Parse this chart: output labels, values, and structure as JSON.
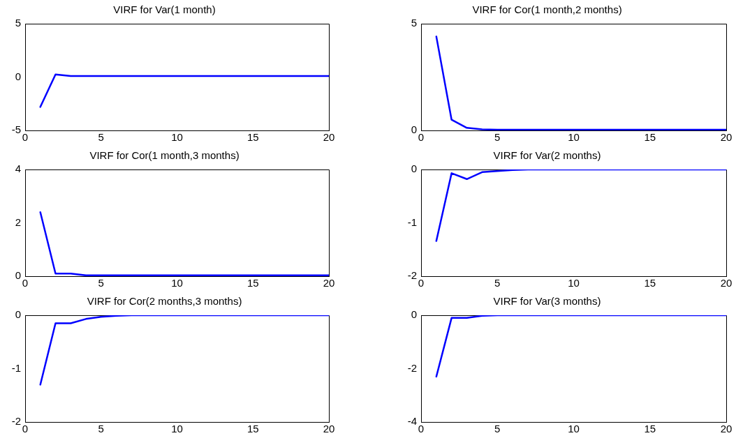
{
  "chart_data": [
    {
      "type": "line",
      "title": "VIRF for Var(1 month)",
      "x": [
        1,
        2,
        3,
        4,
        5,
        6,
        7,
        8,
        9,
        10,
        11,
        12,
        13,
        14,
        15,
        16,
        17,
        18,
        19,
        20
      ],
      "series": [
        {
          "color": "#0000ff",
          "values": [
            -2.8,
            0.25,
            0.1,
            0.1,
            0.1,
            0.1,
            0.1,
            0.1,
            0.1,
            0.1,
            0.1,
            0.1,
            0.1,
            0.1,
            0.1,
            0.1,
            0.1,
            0.1,
            0.1,
            0.1
          ]
        }
      ],
      "xlim": [
        0,
        20
      ],
      "xticks": [
        0,
        5,
        10,
        15,
        20
      ],
      "ylim": [
        -5,
        5
      ],
      "yticks": [
        -5,
        0,
        5
      ],
      "grid": false,
      "legend": false,
      "marker": "none",
      "line_style": "solid"
    },
    {
      "type": "line",
      "title": "VIRF for Cor(1 month,2 months)",
      "x": [
        1,
        2,
        3,
        4,
        5,
        6,
        7,
        8,
        9,
        10,
        11,
        12,
        13,
        14,
        15,
        16,
        17,
        18,
        19,
        20
      ],
      "series": [
        {
          "color": "#0000ff",
          "values": [
            4.4,
            0.5,
            0.12,
            0.05,
            0.03,
            0.03,
            0.03,
            0.03,
            0.03,
            0.03,
            0.03,
            0.03,
            0.03,
            0.03,
            0.03,
            0.03,
            0.03,
            0.03,
            0.03,
            0.03
          ]
        }
      ],
      "xlim": [
        0,
        20
      ],
      "xticks": [
        0,
        5,
        10,
        15,
        20
      ],
      "ylim": [
        0,
        5
      ],
      "yticks": [
        0,
        5
      ],
      "grid": false,
      "legend": false,
      "marker": "none",
      "line_style": "solid"
    },
    {
      "type": "line",
      "title": "VIRF for Cor(1 month,3 months)",
      "x": [
        1,
        2,
        3,
        4,
        5,
        6,
        7,
        8,
        9,
        10,
        11,
        12,
        13,
        14,
        15,
        16,
        17,
        18,
        19,
        20
      ],
      "series": [
        {
          "color": "#0000ff",
          "values": [
            2.4,
            0.1,
            0.1,
            0.03,
            0.03,
            0.03,
            0.03,
            0.03,
            0.03,
            0.03,
            0.03,
            0.03,
            0.03,
            0.03,
            0.03,
            0.03,
            0.03,
            0.03,
            0.03,
            0.03
          ]
        }
      ],
      "xlim": [
        0,
        20
      ],
      "xticks": [
        0,
        5,
        10,
        15,
        20
      ],
      "ylim": [
        0,
        4
      ],
      "yticks": [
        0,
        2,
        4
      ],
      "grid": false,
      "legend": false,
      "marker": "none",
      "line_style": "solid"
    },
    {
      "type": "line",
      "title": "VIRF for Var(2 months)",
      "x": [
        1,
        2,
        3,
        4,
        5,
        6,
        7,
        8,
        9,
        10,
        11,
        12,
        13,
        14,
        15,
        16,
        17,
        18,
        19,
        20
      ],
      "series": [
        {
          "color": "#0000ff",
          "values": [
            -1.34,
            -0.07,
            -0.18,
            -0.05,
            -0.03,
            -0.01,
            0,
            0,
            0,
            0,
            0,
            0,
            0,
            0,
            0,
            0,
            0,
            0,
            0,
            0
          ]
        }
      ],
      "xlim": [
        0,
        20
      ],
      "xticks": [
        0,
        5,
        10,
        15,
        20
      ],
      "ylim": [
        -2,
        0
      ],
      "yticks": [
        -2,
        -1,
        0
      ],
      "grid": false,
      "legend": false,
      "marker": "none",
      "line_style": "solid"
    },
    {
      "type": "line",
      "title": "VIRF for Cor(2 months,3 months)",
      "x": [
        1,
        2,
        3,
        4,
        5,
        6,
        7,
        8,
        9,
        10,
        11,
        12,
        13,
        14,
        15,
        16,
        17,
        18,
        19,
        20
      ],
      "series": [
        {
          "color": "#0000ff",
          "values": [
            -1.3,
            -0.15,
            -0.15,
            -0.07,
            -0.03,
            -0.01,
            0,
            0,
            0,
            0,
            0,
            0,
            0,
            0,
            0,
            0,
            0,
            0,
            0,
            0
          ]
        }
      ],
      "xlim": [
        0,
        20
      ],
      "xticks": [
        0,
        5,
        10,
        15,
        20
      ],
      "ylim": [
        -2,
        0
      ],
      "yticks": [
        -2,
        -1,
        0
      ],
      "grid": false,
      "legend": false,
      "marker": "none",
      "line_style": "solid"
    },
    {
      "type": "line",
      "title": "VIRF for Var(3 months)",
      "x": [
        1,
        2,
        3,
        4,
        5,
        6,
        7,
        8,
        9,
        10,
        11,
        12,
        13,
        14,
        15,
        16,
        17,
        18,
        19,
        20
      ],
      "series": [
        {
          "color": "#0000ff",
          "values": [
            -2.3,
            -0.1,
            -0.1,
            -0.02,
            0,
            0,
            0,
            0,
            0,
            0,
            0,
            0,
            0,
            0,
            0,
            0,
            0,
            0,
            0,
            0
          ]
        }
      ],
      "xlim": [
        0,
        20
      ],
      "xticks": [
        0,
        5,
        10,
        15,
        20
      ],
      "ylim": [
        -4,
        0
      ],
      "yticks": [
        -4,
        -2,
        0
      ],
      "grid": false,
      "legend": false,
      "marker": "none",
      "line_style": "solid"
    }
  ]
}
